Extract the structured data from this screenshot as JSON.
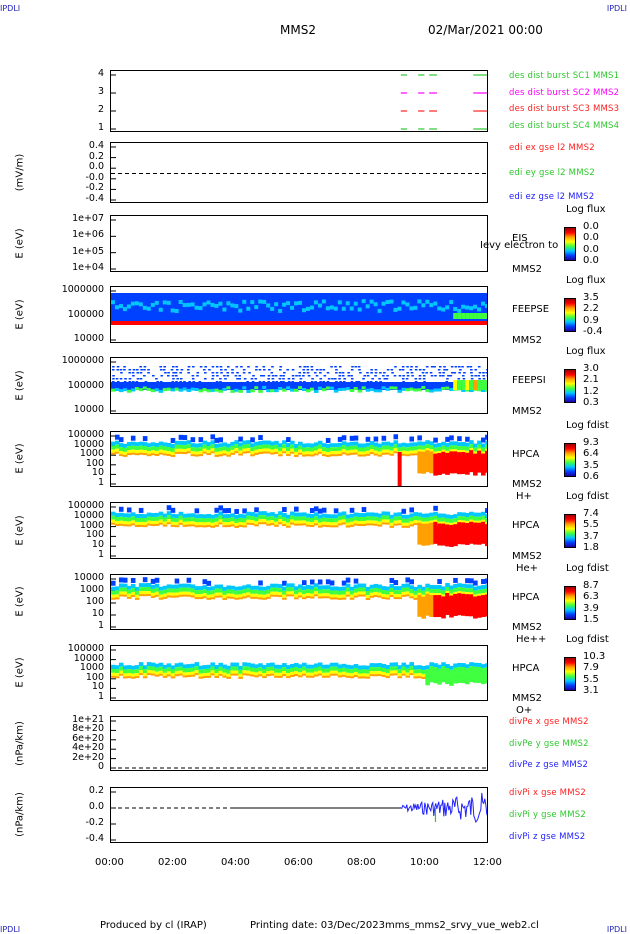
{
  "corners": {
    "tl": "IPDLI",
    "tr": "IPDLI",
    "bl": "IPDLI",
    "br": "IPDLI"
  },
  "header": {
    "spacecraft": "MMS2",
    "date": "02/Mar/2021 00:00"
  },
  "footer": {
    "produced": "Produced by cl (IRAP)",
    "printing": "Printing date: 03/Dec/2023",
    "file": "mms_mms2_srvy_vue_web2.cl"
  },
  "x_ticks": [
    "00:00",
    "02:00",
    "04:00",
    "06:00",
    "08:00",
    "10:00",
    "12:00"
  ],
  "chart_data": [
    {
      "type": "line",
      "ylabel": "",
      "yticks": [
        "4",
        "3",
        "2",
        "1"
      ],
      "series": [
        {
          "name": "des dist burst SC1 MMS1",
          "color": "#2ec82e",
          "y": 4
        },
        {
          "name": "des dist burst SC2 MMS2",
          "color": "#ff00ff",
          "y": 3
        },
        {
          "name": "des dist burst SC3 MMS3",
          "color": "#ff2020",
          "y": 2
        },
        {
          "name": "des dist burst SC4 MMS4",
          "color": "#2ec82e",
          "y": 1
        }
      ],
      "segments": [
        [
          9.2,
          9.4
        ],
        [
          9.75,
          9.95
        ],
        [
          10.1,
          10.35
        ],
        [
          11.5,
          12.0
        ]
      ]
    },
    {
      "type": "line",
      "ylabel": "(mV/m)",
      "yticks": [
        "0.4",
        "0.2",
        "0.0",
        "-0.0",
        "-0.2",
        "-0.4"
      ],
      "series": [
        {
          "name": "edi ex gse l2 MMS2",
          "color": "#ff2020"
        },
        {
          "name": "edi ey gse l2 MMS2",
          "color": "#2ec82e"
        },
        {
          "name": "edi ez gse l2 MMS2",
          "color": "#2020ff"
        }
      ]
    },
    {
      "type": "heatmap",
      "ylabel": "E (eV)",
      "yticks": [
        "1e+07",
        "1e+06",
        "1e+05",
        "1e+04"
      ],
      "instrument": "EIS",
      "spacecraft": "MMS2",
      "overlay": "Ievy electron to",
      "colorbar": {
        "title": "Log flux",
        "ticks": [
          "0.0",
          "0.0",
          "0.0",
          "0.0"
        ]
      }
    },
    {
      "type": "heatmap",
      "ylabel": "E (eV)",
      "yticks": [
        "1000000",
        "100000",
        "10000"
      ],
      "instrument": "FEEPSE",
      "spacecraft": "MMS2",
      "colorbar": {
        "title": "Log flux",
        "ticks": [
          "3.5",
          "2.2",
          "0.9",
          "-0.4"
        ]
      }
    },
    {
      "type": "heatmap",
      "ylabel": "E (eV)",
      "yticks": [
        "1000000",
        "100000",
        "10000"
      ],
      "instrument": "FEEPSI",
      "spacecraft": "MMS2",
      "colorbar": {
        "title": "Log flux",
        "ticks": [
          "3.0",
          "2.1",
          "1.2",
          "0.3"
        ]
      }
    },
    {
      "type": "heatmap",
      "ylabel": "E (eV)",
      "yticks": [
        "100000",
        "10000",
        "1000",
        "100",
        "10",
        "1"
      ],
      "instrument": "HPCA",
      "spacecraft": "MMS2",
      "species": "H+",
      "colorbar": {
        "title": "Log fdist",
        "ticks": [
          "9.3",
          "6.4",
          "3.5",
          "0.6"
        ]
      }
    },
    {
      "type": "heatmap",
      "ylabel": "E (eV)",
      "yticks": [
        "100000",
        "10000",
        "1000",
        "100",
        "10",
        "1"
      ],
      "instrument": "HPCA",
      "spacecraft": "MMS2",
      "species": "He+",
      "colorbar": {
        "title": "Log fdist",
        "ticks": [
          "7.4",
          "5.5",
          "3.7",
          "1.8"
        ]
      }
    },
    {
      "type": "heatmap",
      "ylabel": "E (eV)",
      "yticks": [
        "10000",
        "1000",
        "100",
        "10",
        "1"
      ],
      "instrument": "HPCA",
      "spacecraft": "MMS2",
      "species": "He++",
      "colorbar": {
        "title": "Log fdist",
        "ticks": [
          "8.7",
          "6.3",
          "3.9",
          "1.5"
        ]
      }
    },
    {
      "type": "heatmap",
      "ylabel": "E (eV)",
      "yticks": [
        "100000",
        "10000",
        "1000",
        "100",
        "10",
        "1"
      ],
      "instrument": "HPCA",
      "spacecraft": "MMS2",
      "species": "O+",
      "colorbar": {
        "title": "Log fdist",
        "ticks": [
          "10.3",
          "7.9",
          "5.5",
          "3.1"
        ]
      }
    },
    {
      "type": "line",
      "ylabel": "(nPa/km)",
      "yticks": [
        "1e+21",
        "8e+20",
        "6e+20",
        "4e+20",
        "2e+20",
        "0"
      ],
      "series": [
        {
          "name": "divPe x gse MMS2",
          "color": "#ff2020"
        },
        {
          "name": "divPe y gse MMS2",
          "color": "#2ec82e"
        },
        {
          "name": "divPe z gse MMS2",
          "color": "#2020ff"
        }
      ]
    },
    {
      "type": "line",
      "ylabel": "(nPa/km)",
      "yticks": [
        "0.2",
        "0.0",
        "-0.2",
        "-0.4"
      ],
      "series": [
        {
          "name": "divPi x gse MMS2",
          "color": "#ff2020"
        },
        {
          "name": "divPi y gse MMS2",
          "color": "#2ec82e"
        },
        {
          "name": "divPi z gse MMS2",
          "color": "#2020ff"
        }
      ]
    }
  ]
}
